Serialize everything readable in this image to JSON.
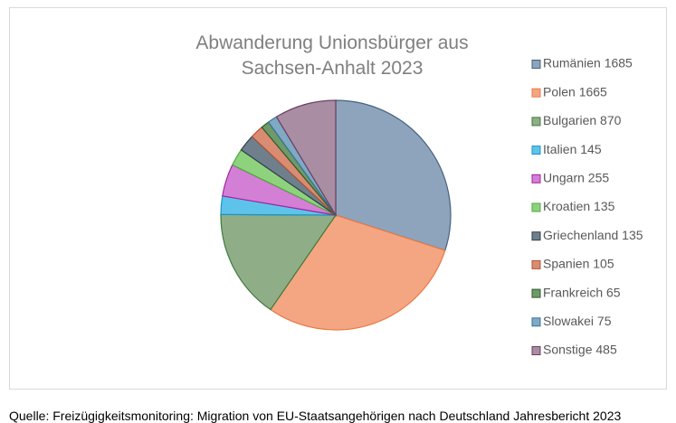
{
  "chart_data": {
    "type": "pie",
    "title": "Abwanderung Unionsbürger aus Sachsen-Anhalt 2023",
    "caption": "Quelle: Freizügigkeitsmonitoring: Migration von EU-Staatsangehörigen nach Deutschland Jahresbericht 2023",
    "categories": [
      "Rumänien 1685",
      "Polen 1665",
      "Bulgarien 870",
      "Italien 145",
      "Ungarn 255",
      "Kroatien 135",
      "Griechenland 135",
      "Spanien 105",
      "Frankreich 65",
      "Slowakei 75",
      "Sonstige 485"
    ],
    "values": [
      1685,
      1665,
      870,
      145,
      255,
      135,
      135,
      105,
      65,
      75,
      485
    ],
    "colors": [
      "#8ea4bd",
      "#f4a582",
      "#8fae88",
      "#5ec3ea",
      "#d47fd6",
      "#8fd27e",
      "#6f7f8c",
      "#d98c72",
      "#6e9a69",
      "#7fa9c4",
      "#a88da3"
    ],
    "edge_colors": [
      "#44617f",
      "#ea7a46",
      "#3f7a3a",
      "#1a94c8",
      "#a3229e",
      "#4caa3c",
      "#2f3f4c",
      "#b45434",
      "#2f5c2c",
      "#3a7494",
      "#6b3f62"
    ],
    "legend": "right"
  }
}
